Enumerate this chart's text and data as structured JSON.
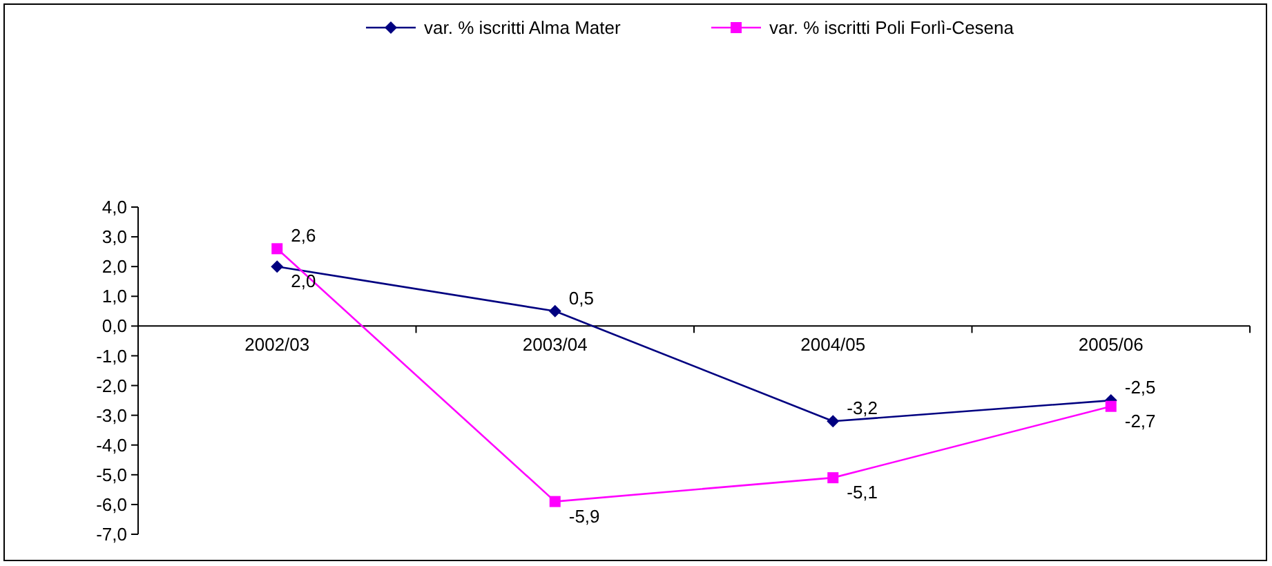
{
  "chart_data": {
    "type": "line",
    "categories": [
      "2002/03",
      "2003/04",
      "2004/05",
      "2005/06"
    ],
    "series": [
      {
        "name": "var. % iscritti Alma Mater",
        "color": "#000080",
        "marker": "diamond",
        "values": [
          2.0,
          0.5,
          -3.2,
          -2.5
        ],
        "value_labels": [
          "2,0",
          "0,5",
          "-3,2",
          "-2,5"
        ]
      },
      {
        "name": "var. % iscritti Poli Forlì-Cesena",
        "color": "#ff00ff",
        "marker": "square",
        "values": [
          2.6,
          -5.9,
          -5.1,
          -2.7
        ],
        "value_labels": [
          "2,6",
          "-5,9",
          "-5,1",
          "-2,7"
        ]
      }
    ],
    "ylim": [
      -7,
      4
    ],
    "yticks": [
      {
        "value": 4,
        "label": "4,0"
      },
      {
        "value": 3,
        "label": "3,0"
      },
      {
        "value": 2,
        "label": "2,0"
      },
      {
        "value": 1,
        "label": "1,0"
      },
      {
        "value": 0,
        "label": "0,0"
      },
      {
        "value": -1,
        "label": "-1,0"
      },
      {
        "value": -2,
        "label": "-2,0"
      },
      {
        "value": -3,
        "label": "-3,0"
      },
      {
        "value": -4,
        "label": "-4,0"
      },
      {
        "value": -5,
        "label": "-5,0"
      },
      {
        "value": -6,
        "label": "-6,0"
      },
      {
        "value": -7,
        "label": "-7,0"
      }
    ],
    "grid": false,
    "legend": "top",
    "line_style": "solid"
  }
}
